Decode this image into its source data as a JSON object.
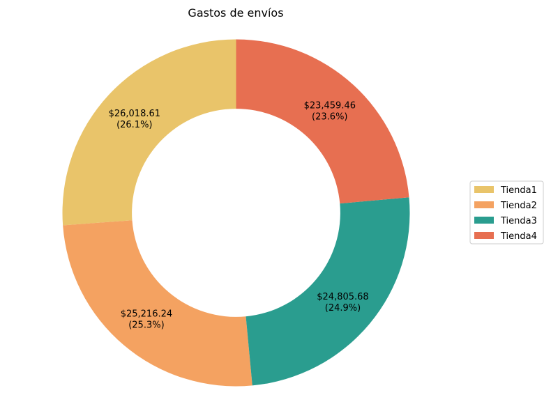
{
  "chart_data": {
    "type": "pie",
    "donut": true,
    "title": "Gastos de envíos",
    "start_angle_deg": 90,
    "direction": "counterclockwise",
    "legend_position": "right",
    "slices": [
      {
        "name": "Tienda1",
        "value": 26018.61,
        "value_label": "$26,018.61",
        "percent_label": "(26.1%)",
        "color": "#e9c46a"
      },
      {
        "name": "Tienda2",
        "value": 25216.24,
        "value_label": "$25,216.24",
        "percent_label": "(25.3%)",
        "color": "#f4a261"
      },
      {
        "name": "Tienda3",
        "value": 24805.68,
        "value_label": "$24,805.68",
        "percent_label": "(24.9%)",
        "color": "#2a9d8f"
      },
      {
        "name": "Tienda4",
        "value": 23459.46,
        "value_label": "$23,459.46",
        "percent_label": "(23.6%)",
        "color": "#e76f51"
      }
    ]
  }
}
